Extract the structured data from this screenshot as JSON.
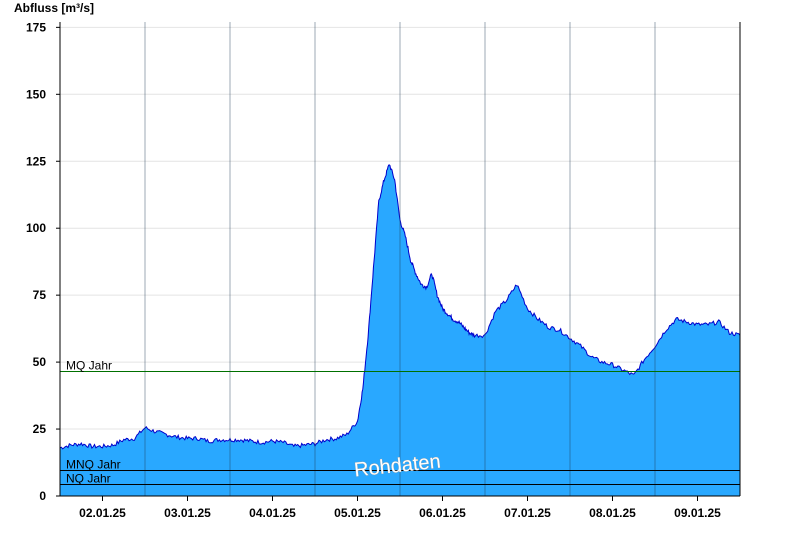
{
  "chart_data": {
    "type": "area",
    "title": "",
    "ylabel": "Abfluss [m³/s]",
    "xlabel": "",
    "ylim": [
      0,
      177
    ],
    "yticks": [
      0,
      25,
      50,
      75,
      100,
      125,
      150,
      175
    ],
    "xlim": [
      "2025-01-01T12:00",
      "2025-01-09T12:00"
    ],
    "xticks": [
      "2025-01-02T00:00",
      "2025-01-03T00:00",
      "2025-01-04T00:00",
      "2025-01-05T00:00",
      "2025-01-06T00:00",
      "2025-01-07T00:00",
      "2025-01-08T00:00",
      "2025-01-09T00:00"
    ],
    "xtick_labels": [
      "02.01.25",
      "03.01.25",
      "04.01.25",
      "05.01.25",
      "06.01.25",
      "07.01.25",
      "08.01.25",
      "09.01.25"
    ],
    "grid": true,
    "colors": {
      "fill": "#29a8ff",
      "line": "#0000cc",
      "mq_line": "#007000",
      "ref_line": "#000000",
      "grid": "#e4e4e4"
    },
    "reference_lines": [
      {
        "name": "MQ Jahr",
        "value": 46.5
      },
      {
        "name": "MNQ Jahr",
        "value": 9.5
      },
      {
        "name": "NQ Jahr",
        "value": 4.3
      }
    ],
    "watermark": "Rohdaten",
    "series": [
      {
        "x": [
          "2025-01-01T12:00",
          "2025-01-01T15:00",
          "2025-01-01T18:00",
          "2025-01-01T21:00",
          "2025-01-02T00:00",
          "2025-01-02T03:00",
          "2025-01-02T06:00",
          "2025-01-02T09:00",
          "2025-01-02T12:00",
          "2025-01-02T15:00",
          "2025-01-02T18:00",
          "2025-01-02T21:00",
          "2025-01-03T00:00",
          "2025-01-03T03:00",
          "2025-01-03T06:00",
          "2025-01-03T09:00",
          "2025-01-03T12:00",
          "2025-01-03T15:00",
          "2025-01-03T18:00",
          "2025-01-03T21:00",
          "2025-01-04T00:00",
          "2025-01-04T03:00",
          "2025-01-04T06:00",
          "2025-01-04T09:00",
          "2025-01-04T12:00",
          "2025-01-04T15:00",
          "2025-01-04T18:00",
          "2025-01-04T21:00",
          "2025-01-05T00:00",
          "2025-01-05T01:30",
          "2025-01-05T03:00",
          "2025-01-05T04:30",
          "2025-01-05T06:00",
          "2025-01-05T07:30",
          "2025-01-05T09:00",
          "2025-01-05T10:30",
          "2025-01-05T12:00",
          "2025-01-05T13:30",
          "2025-01-05T15:00",
          "2025-01-05T16:30",
          "2025-01-05T18:00",
          "2025-01-05T19:30",
          "2025-01-05T21:00",
          "2025-01-05T22:30",
          "2025-01-06T00:00",
          "2025-01-06T01:30",
          "2025-01-06T03:00",
          "2025-01-06T04:30",
          "2025-01-06T06:00",
          "2025-01-06T07:30",
          "2025-01-06T09:00",
          "2025-01-06T12:00",
          "2025-01-06T15:00",
          "2025-01-06T18:00",
          "2025-01-06T21:00",
          "2025-01-07T00:00",
          "2025-01-07T03:00",
          "2025-01-07T06:00",
          "2025-01-07T09:00",
          "2025-01-07T12:00",
          "2025-01-07T15:00",
          "2025-01-07T18:00",
          "2025-01-07T21:00",
          "2025-01-08T00:00",
          "2025-01-08T03:00",
          "2025-01-08T06:00",
          "2025-01-08T09:00",
          "2025-01-08T12:00",
          "2025-01-08T15:00",
          "2025-01-08T18:00",
          "2025-01-08T21:00",
          "2025-01-09T00:00",
          "2025-01-09T03:00",
          "2025-01-09T06:00",
          "2025-01-09T09:00",
          "2025-01-09T12:00"
        ],
        "values": [
          18,
          19,
          19.5,
          18.5,
          18.5,
          19,
          21,
          21.5,
          25.5,
          24,
          23,
          22,
          21.5,
          21.5,
          20.5,
          21,
          21,
          21,
          20.5,
          20,
          20.5,
          20,
          18.5,
          19,
          19.5,
          21,
          21.5,
          23,
          28,
          40,
          60,
          85,
          110,
          118,
          124,
          118,
          103,
          97,
          88,
          83,
          79,
          78,
          83,
          75,
          70,
          68,
          66,
          65,
          63,
          61,
          60,
          60,
          69,
          73,
          79,
          70,
          66,
          63,
          62,
          59,
          56,
          52,
          50,
          49,
          47,
          45,
          51,
          56,
          62,
          66,
          65,
          64,
          64,
          65,
          61,
          60
        ]
      }
    ]
  }
}
